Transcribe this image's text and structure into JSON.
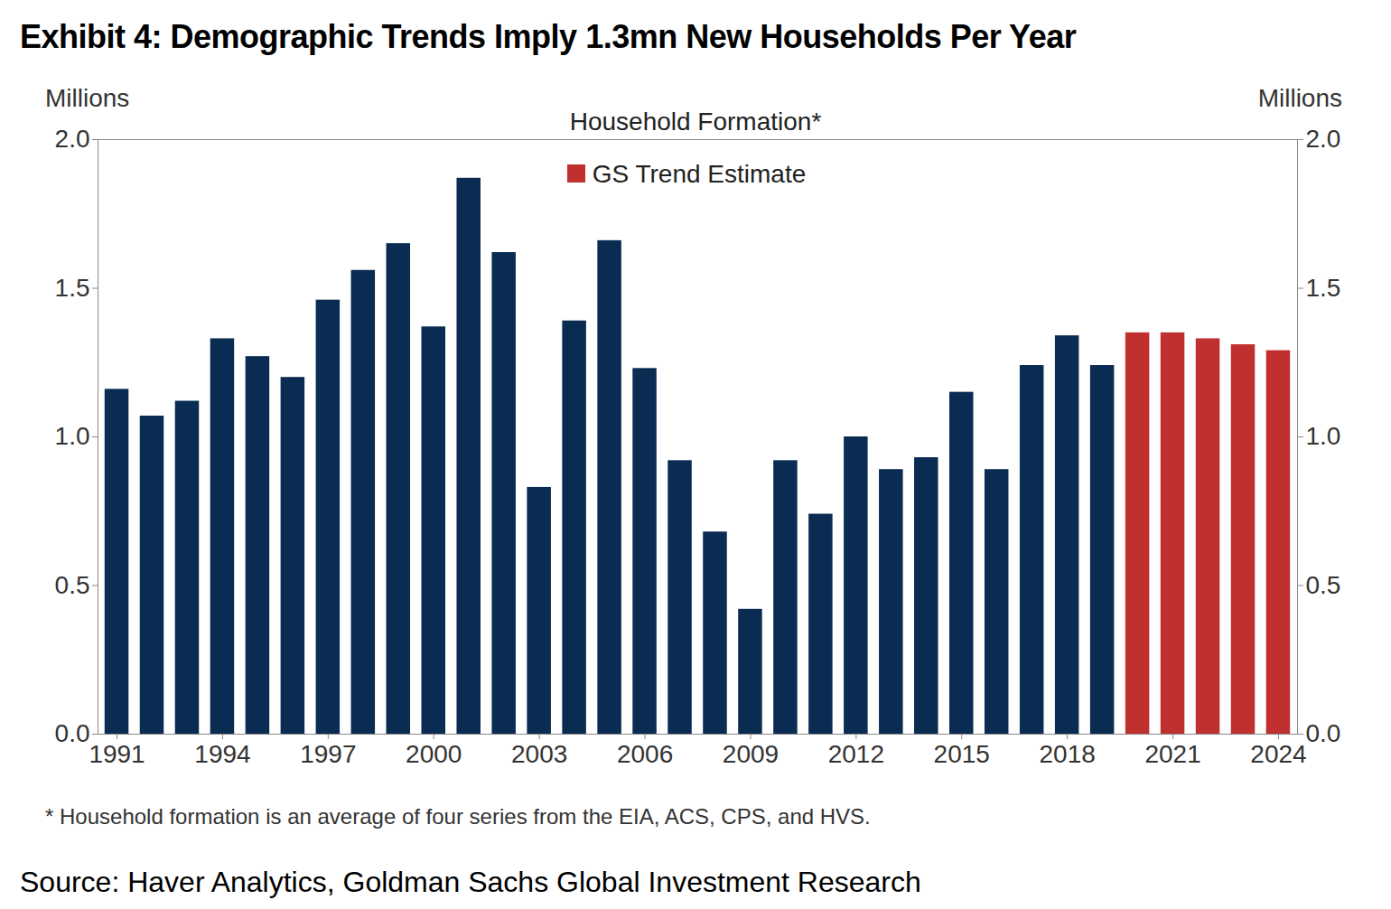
{
  "chart_data": {
    "type": "bar",
    "title": "Exhibit 4: Demographic Trends Imply 1.3mn New Households Per Year",
    "subtitle": "Household Formation*",
    "ylabel": "Millions",
    "y2label": "Millions",
    "note": "* Household  formation  is an average of four series from the EIA,  ACS,  CPS,  and HVS.",
    "source": "Source: Haver Analytics, Goldman Sachs Global Investment Research",
    "categories": [
      "1991",
      null,
      null,
      "1994",
      null,
      null,
      "1997",
      null,
      null,
      "2000",
      null,
      null,
      "2003",
      null,
      null,
      "2006",
      null,
      null,
      "2009",
      null,
      null,
      "2012",
      null,
      null,
      "2015",
      null,
      null,
      "2018",
      null,
      null,
      "2021",
      null,
      null,
      "2024"
    ],
    "series": [
      {
        "name": null,
        "color": "#0a2b52",
        "values": [
          1.16,
          1.07,
          1.12,
          1.33,
          1.27,
          1.2,
          1.46,
          1.56,
          1.65,
          1.37,
          1.87,
          1.62,
          0.83,
          1.39,
          1.66,
          1.23,
          0.92,
          0.68,
          0.42,
          0.92,
          0.74,
          1.0,
          0.89,
          0.93,
          1.15,
          0.89,
          1.24,
          1.34,
          1.24,
          null,
          null,
          null,
          null,
          null
        ]
      },
      {
        "name": "GS Trend Estimate",
        "color": "#c0302f",
        "values": [
          null,
          null,
          null,
          null,
          null,
          null,
          null,
          null,
          null,
          null,
          null,
          null,
          null,
          null,
          null,
          null,
          null,
          null,
          null,
          null,
          null,
          null,
          null,
          null,
          null,
          null,
          null,
          null,
          null,
          1.35,
          1.35,
          1.33,
          1.31,
          1.29
        ]
      }
    ],
    "ylim": [
      0,
      2
    ],
    "yticks": [
      {
        "value": 0,
        "label": "0.0"
      },
      0.5,
      {
        "value": 1,
        "label": "1.0"
      },
      1.5,
      {
        "value": 2,
        "label": "2.0"
      }
    ],
    "y2lim": [
      0,
      2
    ],
    "y2ticks": [
      {
        "value": 0,
        "label": "0.0"
      },
      0.5,
      {
        "value": 1,
        "label": "1.0"
      },
      1.5,
      {
        "value": 2,
        "label": "2.0"
      }
    ],
    "legend": "top",
    "grid": false,
    "data_labels": false
  }
}
